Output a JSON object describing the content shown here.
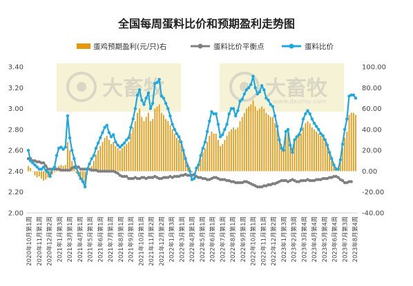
{
  "chart_data": {
    "type": "bar+line",
    "title": "全国每周蛋料比价和预期盈利走势图",
    "legend": {
      "placement": "top",
      "items": [
        {
          "key": "profit",
          "label": "蛋鸡预期盈利(元/只)右",
          "color": "#e8960c",
          "marker": "bar"
        },
        {
          "key": "breakeven",
          "label": "蛋料比价平衡点",
          "color": "#7f7f7f",
          "marker": "line-dot"
        },
        {
          "key": "ratio",
          "label": "蛋料比价",
          "color": "#1fa8e0",
          "marker": "line-dot"
        }
      ]
    },
    "left_axis": {
      "min": 2.0,
      "max": 3.4,
      "ticks": [
        "2.00",
        "2.20",
        "2.40",
        "2.60",
        "2.80",
        "3.00",
        "3.20",
        "3.40"
      ]
    },
    "right_axis": {
      "min": -40,
      "max": 100,
      "ticks": [
        "-40.00",
        "-20.00",
        "0.00",
        "20.00",
        "40.00",
        "60.00",
        "80.00",
        "100.00"
      ]
    },
    "x_labels": [
      "2020年10月第1周",
      "2020年11月第1周",
      "2020年12月第2周",
      "2021年1月第3周",
      "2021年3月第1周",
      "2021年4月第1周",
      "2021年5月第1周",
      "2021年6月第1周",
      "2021年7月第1周",
      "2021年8月第1周",
      "2021年9月第1周",
      "2021年10月第1周",
      "2021年11月第2周",
      "2021年12月第2周",
      "2022年1月第3周",
      "2022年3月第1周",
      "2022年4月第1周",
      "2022年5月第1周",
      "2022年6月第1周",
      "2022年7月第1周",
      "2022年8月第1周",
      "2022年9月第1周",
      "2022年10月第1周",
      "2022年11月第1周",
      "2022年12月第2周",
      "2023年1月第3周",
      "2023年2月第3周",
      "2023年3月第4周",
      "2023年4月第4周",
      "2023年5月第4周",
      "2023年6月第4周",
      "2023年7月第3周",
      "2023年8月第4周"
    ],
    "series": [
      {
        "name": "蛋料比价",
        "axis": "left",
        "values": [
          2.6,
          2.5,
          2.48,
          2.46,
          2.44,
          2.42,
          2.42,
          2.44,
          2.41,
          2.39,
          2.35,
          2.42,
          2.44,
          2.55,
          2.62,
          2.63,
          2.61,
          2.63,
          2.93,
          2.72,
          2.6,
          2.52,
          2.43,
          2.38,
          2.33,
          2.3,
          2.25,
          2.42,
          2.47,
          2.52,
          2.55,
          2.62,
          2.67,
          2.72,
          2.77,
          2.82,
          2.84,
          2.77,
          2.73,
          2.75,
          2.68,
          2.65,
          2.63,
          2.65,
          2.67,
          2.7,
          2.72,
          2.82,
          2.9,
          3.0,
          3.13,
          3.18,
          3.08,
          3.04,
          3.1,
          3.15,
          3.0,
          3.05,
          3.24,
          3.25,
          3.28,
          3.12,
          3.1,
          3.05,
          3.0,
          2.93,
          2.85,
          2.8,
          2.76,
          2.73,
          2.68,
          2.6,
          2.52,
          2.45,
          2.4,
          2.32,
          2.33,
          2.43,
          2.46,
          2.55,
          2.62,
          2.68,
          2.78,
          2.88,
          2.97,
          2.95,
          2.95,
          2.85,
          2.73,
          2.75,
          2.8,
          2.85,
          2.95,
          3.0,
          3.0,
          2.93,
          2.98,
          3.07,
          3.09,
          3.14,
          3.18,
          3.2,
          3.23,
          3.31,
          3.2,
          3.14,
          3.16,
          3.22,
          3.18,
          3.1,
          3.08,
          3.04,
          3.02,
          2.93,
          2.83,
          2.7,
          2.62,
          2.6,
          2.78,
          2.8,
          2.65,
          2.58,
          2.7,
          2.73,
          2.75,
          2.8,
          2.9,
          2.95,
          2.98,
          2.95,
          2.9,
          2.86,
          2.83,
          2.8,
          2.76,
          2.74,
          2.7,
          2.65,
          2.58,
          2.52,
          2.46,
          2.42,
          2.42,
          2.51,
          2.66,
          2.8,
          2.9,
          3.12,
          3.13,
          3.13,
          3.1
        ]
      },
      {
        "name": "蛋料比价平衡点",
        "axis": "left",
        "values": [
          2.52,
          2.52,
          2.5,
          2.5,
          2.49,
          2.49,
          2.48,
          2.48,
          2.45,
          2.42,
          2.42,
          2.42,
          2.42,
          2.42,
          2.42,
          2.41,
          2.41,
          2.41,
          2.41,
          2.41,
          2.43,
          2.44,
          2.44,
          2.44,
          2.42,
          2.42,
          2.42,
          2.42,
          2.42,
          2.41,
          2.41,
          2.41,
          2.4,
          2.4,
          2.4,
          2.4,
          2.4,
          2.4,
          2.4,
          2.4,
          2.39,
          2.38,
          2.36,
          2.35,
          2.35,
          2.35,
          2.33,
          2.33,
          2.33,
          2.34,
          2.33,
          2.33,
          2.34,
          2.34,
          2.33,
          2.34,
          2.34,
          2.34,
          2.35,
          2.34,
          2.33,
          2.33,
          2.34,
          2.34,
          2.34,
          2.35,
          2.34,
          2.35,
          2.35,
          2.35,
          2.36,
          2.36,
          2.37,
          2.36,
          2.36,
          2.36,
          2.37,
          2.35,
          2.34,
          2.34,
          2.33,
          2.33,
          2.32,
          2.32,
          2.33,
          2.34,
          2.34,
          2.33,
          2.32,
          2.32,
          2.32,
          2.31,
          2.31,
          2.3,
          2.3,
          2.29,
          2.29,
          2.29,
          2.29,
          2.3,
          2.3,
          2.29,
          2.28,
          2.27,
          2.26,
          2.25,
          2.25,
          2.25,
          2.26,
          2.26,
          2.27,
          2.27,
          2.28,
          2.28,
          2.29,
          2.3,
          2.31,
          2.31,
          2.31,
          2.3,
          2.31,
          2.32,
          2.31,
          2.3,
          2.3,
          2.31,
          2.31,
          2.31,
          2.32,
          2.31,
          2.31,
          2.31,
          2.32,
          2.32,
          2.32,
          2.33,
          2.33,
          2.33,
          2.34,
          2.34,
          2.35,
          2.35,
          2.34,
          2.32,
          2.31,
          2.29,
          2.29,
          2.3,
          2.3
        ]
      },
      {
        "name": "蛋鸡预期盈利(元/只)右",
        "axis": "right",
        "values": [
          5,
          3,
          0,
          -4,
          -6,
          -5,
          -7,
          -9,
          -8,
          -6,
          -6,
          -3,
          -1,
          2,
          5,
          6,
          5,
          6,
          28,
          20,
          10,
          4,
          -2,
          -5,
          -8,
          -10,
          -12,
          -3,
          0,
          5,
          10,
          16,
          20,
          24,
          28,
          32,
          34,
          30,
          26,
          28,
          24,
          22,
          20,
          22,
          24,
          26,
          28,
          36,
          42,
          48,
          56,
          60,
          52,
          48,
          52,
          56,
          48,
          50,
          60,
          62,
          64,
          56,
          54,
          50,
          48,
          44,
          40,
          36,
          32,
          30,
          26,
          20,
          14,
          8,
          4,
          -1,
          0,
          4,
          6,
          12,
          18,
          22,
          28,
          34,
          38,
          36,
          36,
          30,
          24,
          26,
          30,
          34,
          38,
          40,
          42,
          40,
          42,
          48,
          52,
          56,
          60,
          62,
          64,
          68,
          62,
          58,
          60,
          62,
          60,
          56,
          54,
          52,
          52,
          46,
          40,
          32,
          26,
          24,
          36,
          38,
          28,
          22,
          30,
          32,
          34,
          36,
          42,
          46,
          48,
          46,
          42,
          40,
          38,
          36,
          34,
          32,
          28,
          24,
          18,
          14,
          8,
          4,
          4,
          12,
          22,
          32,
          38,
          54,
          56,
          56,
          54
        ]
      }
    ],
    "watermarks": [
      {
        "text": "大畜牧",
        "url": ""
      },
      {
        "text": "大畜牧",
        "url": "www.dxumu.com"
      }
    ]
  }
}
